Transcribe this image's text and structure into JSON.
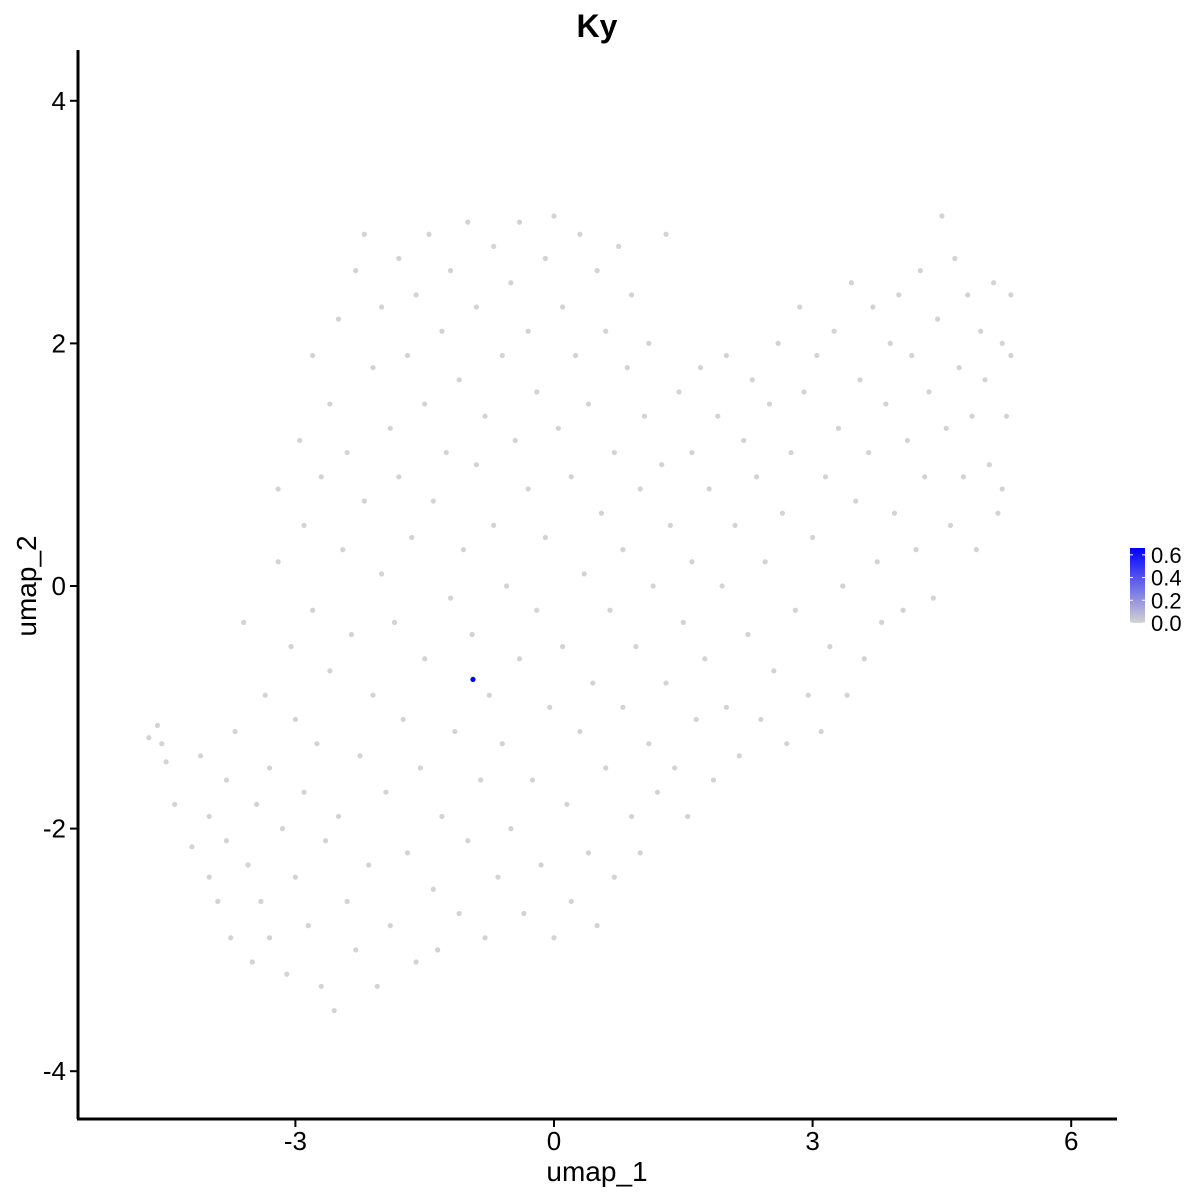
{
  "chart_data": {
    "type": "scatter",
    "title": "Ky",
    "xlabel": "umap_1",
    "ylabel": "umap_2",
    "xlim": [
      -5.5,
      6.5
    ],
    "ylim": [
      -4.4,
      4.4
    ],
    "xticks": [
      -3,
      0,
      3,
      6
    ],
    "xtick_labels": [
      "-3",
      "0",
      "3",
      "6"
    ],
    "yticks": [
      -4,
      -2,
      0,
      2,
      4
    ],
    "ytick_labels": [
      "-4",
      "-2",
      "0",
      "2",
      "4"
    ],
    "grid": false,
    "legend": {
      "placement": "right",
      "type": "colorbar",
      "labels": [
        "0.6",
        "0.4",
        "0.2",
        "0.0"
      ],
      "values": [
        0.6,
        0.4,
        0.2,
        0.0
      ],
      "range": [
        0,
        0.66
      ],
      "low_color": "#D3D3D3",
      "high_color": "#0000FF"
    },
    "points_zero": [
      [
        -4.7,
        -1.25
      ],
      [
        -4.6,
        -1.15
      ],
      [
        -4.55,
        -1.3
      ],
      [
        -4.5,
        -1.45
      ],
      [
        -4.4,
        -1.8
      ],
      [
        -4.2,
        -2.15
      ],
      [
        -4.1,
        -1.4
      ],
      [
        -4.0,
        -1.9
      ],
      [
        -4.0,
        -2.4
      ],
      [
        -3.9,
        -2.6
      ],
      [
        -3.8,
        -1.6
      ],
      [
        -3.8,
        -2.1
      ],
      [
        -3.75,
        -2.9
      ],
      [
        -3.7,
        -1.2
      ],
      [
        -3.6,
        -0.3
      ],
      [
        -3.55,
        -2.3
      ],
      [
        -3.5,
        -3.1
      ],
      [
        -3.45,
        -1.8
      ],
      [
        -3.4,
        -2.6
      ],
      [
        -3.35,
        -0.9
      ],
      [
        -3.3,
        -1.5
      ],
      [
        -3.3,
        -2.9
      ],
      [
        -3.2,
        0.2
      ],
      [
        -3.2,
        0.8
      ],
      [
        -3.15,
        -2.0
      ],
      [
        -3.1,
        -3.2
      ],
      [
        -3.05,
        -0.5
      ],
      [
        -3.0,
        -1.1
      ],
      [
        -3.0,
        -2.4
      ],
      [
        -2.95,
        1.2
      ],
      [
        -2.9,
        0.5
      ],
      [
        -2.9,
        -1.7
      ],
      [
        -2.85,
        -2.8
      ],
      [
        -2.8,
        -0.2
      ],
      [
        -2.8,
        1.9
      ],
      [
        -2.75,
        -1.3
      ],
      [
        -2.7,
        -3.3
      ],
      [
        -2.7,
        0.9
      ],
      [
        -2.65,
        -2.1
      ],
      [
        -2.6,
        1.5
      ],
      [
        -2.6,
        -0.7
      ],
      [
        -2.55,
        -3.5
      ],
      [
        -2.5,
        2.2
      ],
      [
        -2.5,
        -1.9
      ],
      [
        -2.45,
        0.3
      ],
      [
        -2.4,
        -2.6
      ],
      [
        -2.4,
        1.1
      ],
      [
        -2.35,
        -0.4
      ],
      [
        -2.3,
        -3.0
      ],
      [
        -2.3,
        2.6
      ],
      [
        -2.25,
        -1.4
      ],
      [
        -2.2,
        2.9
      ],
      [
        -2.2,
        0.7
      ],
      [
        -2.15,
        -2.3
      ],
      [
        -2.1,
        1.8
      ],
      [
        -2.1,
        -0.9
      ],
      [
        -2.05,
        -3.3
      ],
      [
        -2.0,
        0.1
      ],
      [
        -2.0,
        2.3
      ],
      [
        -1.95,
        -1.7
      ],
      [
        -1.9,
        1.3
      ],
      [
        -1.9,
        -2.8
      ],
      [
        -1.85,
        -0.3
      ],
      [
        -1.8,
        2.7
      ],
      [
        -1.8,
        0.9
      ],
      [
        -1.75,
        -1.1
      ],
      [
        -1.7,
        -2.2
      ],
      [
        -1.7,
        1.9
      ],
      [
        -1.65,
        0.4
      ],
      [
        -1.6,
        -3.1
      ],
      [
        -1.6,
        2.4
      ],
      [
        -1.55,
        -1.5
      ],
      [
        -1.5,
        1.5
      ],
      [
        -1.5,
        -0.6
      ],
      [
        -1.45,
        2.9
      ],
      [
        -1.4,
        -2.5
      ],
      [
        -1.4,
        0.7
      ],
      [
        -1.35,
        -3.0
      ],
      [
        -1.3,
        2.1
      ],
      [
        -1.3,
        -1.9
      ],
      [
        -1.25,
        1.1
      ],
      [
        -1.2,
        -0.1
      ],
      [
        -1.2,
        2.6
      ],
      [
        -1.15,
        -1.2
      ],
      [
        -1.1,
        -2.7
      ],
      [
        -1.1,
        1.7
      ],
      [
        -1.05,
        0.3
      ],
      [
        -1.0,
        3.0
      ],
      [
        -1.0,
        -2.1
      ],
      [
        -0.95,
        -0.4
      ],
      [
        -0.9,
        2.3
      ],
      [
        -0.9,
        1.0
      ],
      [
        -0.85,
        -1.6
      ],
      [
        -0.8,
        -2.9
      ],
      [
        -0.8,
        1.4
      ],
      [
        -0.75,
        -0.9
      ],
      [
        -0.7,
        2.8
      ],
      [
        -0.7,
        0.5
      ],
      [
        -0.65,
        -2.4
      ],
      [
        -0.6,
        1.9
      ],
      [
        -0.6,
        -1.3
      ],
      [
        -0.55,
        0.0
      ],
      [
        -0.5,
        2.5
      ],
      [
        -0.5,
        -2.0
      ],
      [
        -0.45,
        1.2
      ],
      [
        -0.4,
        -0.6
      ],
      [
        -0.4,
        3.0
      ],
      [
        -0.35,
        -2.7
      ],
      [
        -0.3,
        0.8
      ],
      [
        -0.3,
        2.1
      ],
      [
        -0.25,
        -1.6
      ],
      [
        -0.2,
        1.6
      ],
      [
        -0.2,
        -0.2
      ],
      [
        -0.15,
        -2.3
      ],
      [
        -0.1,
        2.7
      ],
      [
        -0.1,
        0.4
      ],
      [
        -0.05,
        -1.0
      ],
      [
        0.0,
        3.05
      ],
      [
        0.0,
        -2.9
      ],
      [
        0.05,
        1.3
      ],
      [
        0.1,
        -0.5
      ],
      [
        0.1,
        2.3
      ],
      [
        0.15,
        -1.8
      ],
      [
        0.2,
        0.9
      ],
      [
        0.2,
        -2.6
      ],
      [
        0.25,
        1.9
      ],
      [
        0.3,
        -1.2
      ],
      [
        0.3,
        2.9
      ],
      [
        0.35,
        0.1
      ],
      [
        0.4,
        -2.2
      ],
      [
        0.4,
        1.5
      ],
      [
        0.45,
        -0.8
      ],
      [
        0.5,
        2.6
      ],
      [
        0.5,
        -2.8
      ],
      [
        0.55,
        0.6
      ],
      [
        0.6,
        -1.5
      ],
      [
        0.6,
        2.1
      ],
      [
        0.65,
        -0.2
      ],
      [
        0.7,
        1.1
      ],
      [
        0.7,
        -2.4
      ],
      [
        0.75,
        2.8
      ],
      [
        0.8,
        -1.0
      ],
      [
        0.8,
        0.3
      ],
      [
        0.85,
        1.8
      ],
      [
        0.9,
        -1.9
      ],
      [
        0.9,
        2.4
      ],
      [
        0.95,
        -0.5
      ],
      [
        1.0,
        0.8
      ],
      [
        1.0,
        -2.2
      ],
      [
        1.05,
        1.4
      ],
      [
        1.1,
        -1.3
      ],
      [
        1.1,
        2.0
      ],
      [
        1.15,
        0.0
      ],
      [
        1.2,
        -1.7
      ],
      [
        1.25,
        1.0
      ],
      [
        1.3,
        -0.8
      ],
      [
        1.3,
        2.9
      ],
      [
        1.35,
        0.5
      ],
      [
        1.4,
        -1.5
      ],
      [
        1.45,
        1.6
      ],
      [
        1.5,
        -0.3
      ],
      [
        1.55,
        -1.9
      ],
      [
        1.6,
        1.1
      ],
      [
        1.6,
        0.2
      ],
      [
        1.65,
        -1.1
      ],
      [
        1.7,
        1.8
      ],
      [
        1.75,
        -0.6
      ],
      [
        1.8,
        0.8
      ],
      [
        1.85,
        -1.6
      ],
      [
        1.9,
        1.4
      ],
      [
        1.95,
        0.0
      ],
      [
        2.0,
        1.9
      ],
      [
        2.0,
        -1.0
      ],
      [
        2.1,
        0.5
      ],
      [
        2.15,
        -1.4
      ],
      [
        2.2,
        1.2
      ],
      [
        2.25,
        -0.4
      ],
      [
        2.3,
        1.7
      ],
      [
        2.35,
        0.9
      ],
      [
        2.4,
        -1.1
      ],
      [
        2.45,
        0.2
      ],
      [
        2.5,
        1.5
      ],
      [
        2.55,
        -0.7
      ],
      [
        2.6,
        2.0
      ],
      [
        2.65,
        0.6
      ],
      [
        2.7,
        -1.3
      ],
      [
        2.75,
        1.1
      ],
      [
        2.8,
        -0.2
      ],
      [
        2.85,
        2.3
      ],
      [
        2.9,
        1.6
      ],
      [
        2.95,
        -0.9
      ],
      [
        3.0,
        0.4
      ],
      [
        3.05,
        1.9
      ],
      [
        3.1,
        -1.2
      ],
      [
        3.15,
        0.9
      ],
      [
        3.2,
        -0.5
      ],
      [
        3.25,
        2.1
      ],
      [
        3.3,
        1.3
      ],
      [
        3.35,
        0.0
      ],
      [
        3.4,
        -0.9
      ],
      [
        3.45,
        2.5
      ],
      [
        3.5,
        0.7
      ],
      [
        3.55,
        1.7
      ],
      [
        3.6,
        -0.6
      ],
      [
        3.65,
        1.1
      ],
      [
        3.7,
        2.3
      ],
      [
        3.75,
        0.2
      ],
      [
        3.8,
        -0.3
      ],
      [
        3.85,
        1.5
      ],
      [
        3.9,
        2.0
      ],
      [
        3.95,
        0.6
      ],
      [
        4.0,
        2.4
      ],
      [
        4.05,
        -0.2
      ],
      [
        4.1,
        1.2
      ],
      [
        4.15,
        1.9
      ],
      [
        4.2,
        0.3
      ],
      [
        4.25,
        2.6
      ],
      [
        4.3,
        0.9
      ],
      [
        4.35,
        1.6
      ],
      [
        4.4,
        -0.1
      ],
      [
        4.45,
        2.2
      ],
      [
        4.5,
        3.05
      ],
      [
        4.55,
        1.3
      ],
      [
        4.6,
        0.5
      ],
      [
        4.65,
        2.7
      ],
      [
        4.7,
        1.8
      ],
      [
        4.75,
        0.9
      ],
      [
        4.8,
        2.4
      ],
      [
        4.85,
        1.4
      ],
      [
        4.9,
        0.3
      ],
      [
        4.95,
        2.1
      ],
      [
        5.0,
        1.7
      ],
      [
        5.05,
        1.0
      ],
      [
        5.1,
        2.5
      ],
      [
        5.15,
        0.6
      ],
      [
        5.2,
        2.0
      ],
      [
        5.25,
        1.4
      ],
      [
        5.3,
        2.4
      ],
      [
        5.3,
        1.9
      ],
      [
        5.2,
        0.8
      ]
    ],
    "points_expressing": [
      {
        "x": -0.94,
        "y": -0.77,
        "value": 0.66
      }
    ]
  }
}
